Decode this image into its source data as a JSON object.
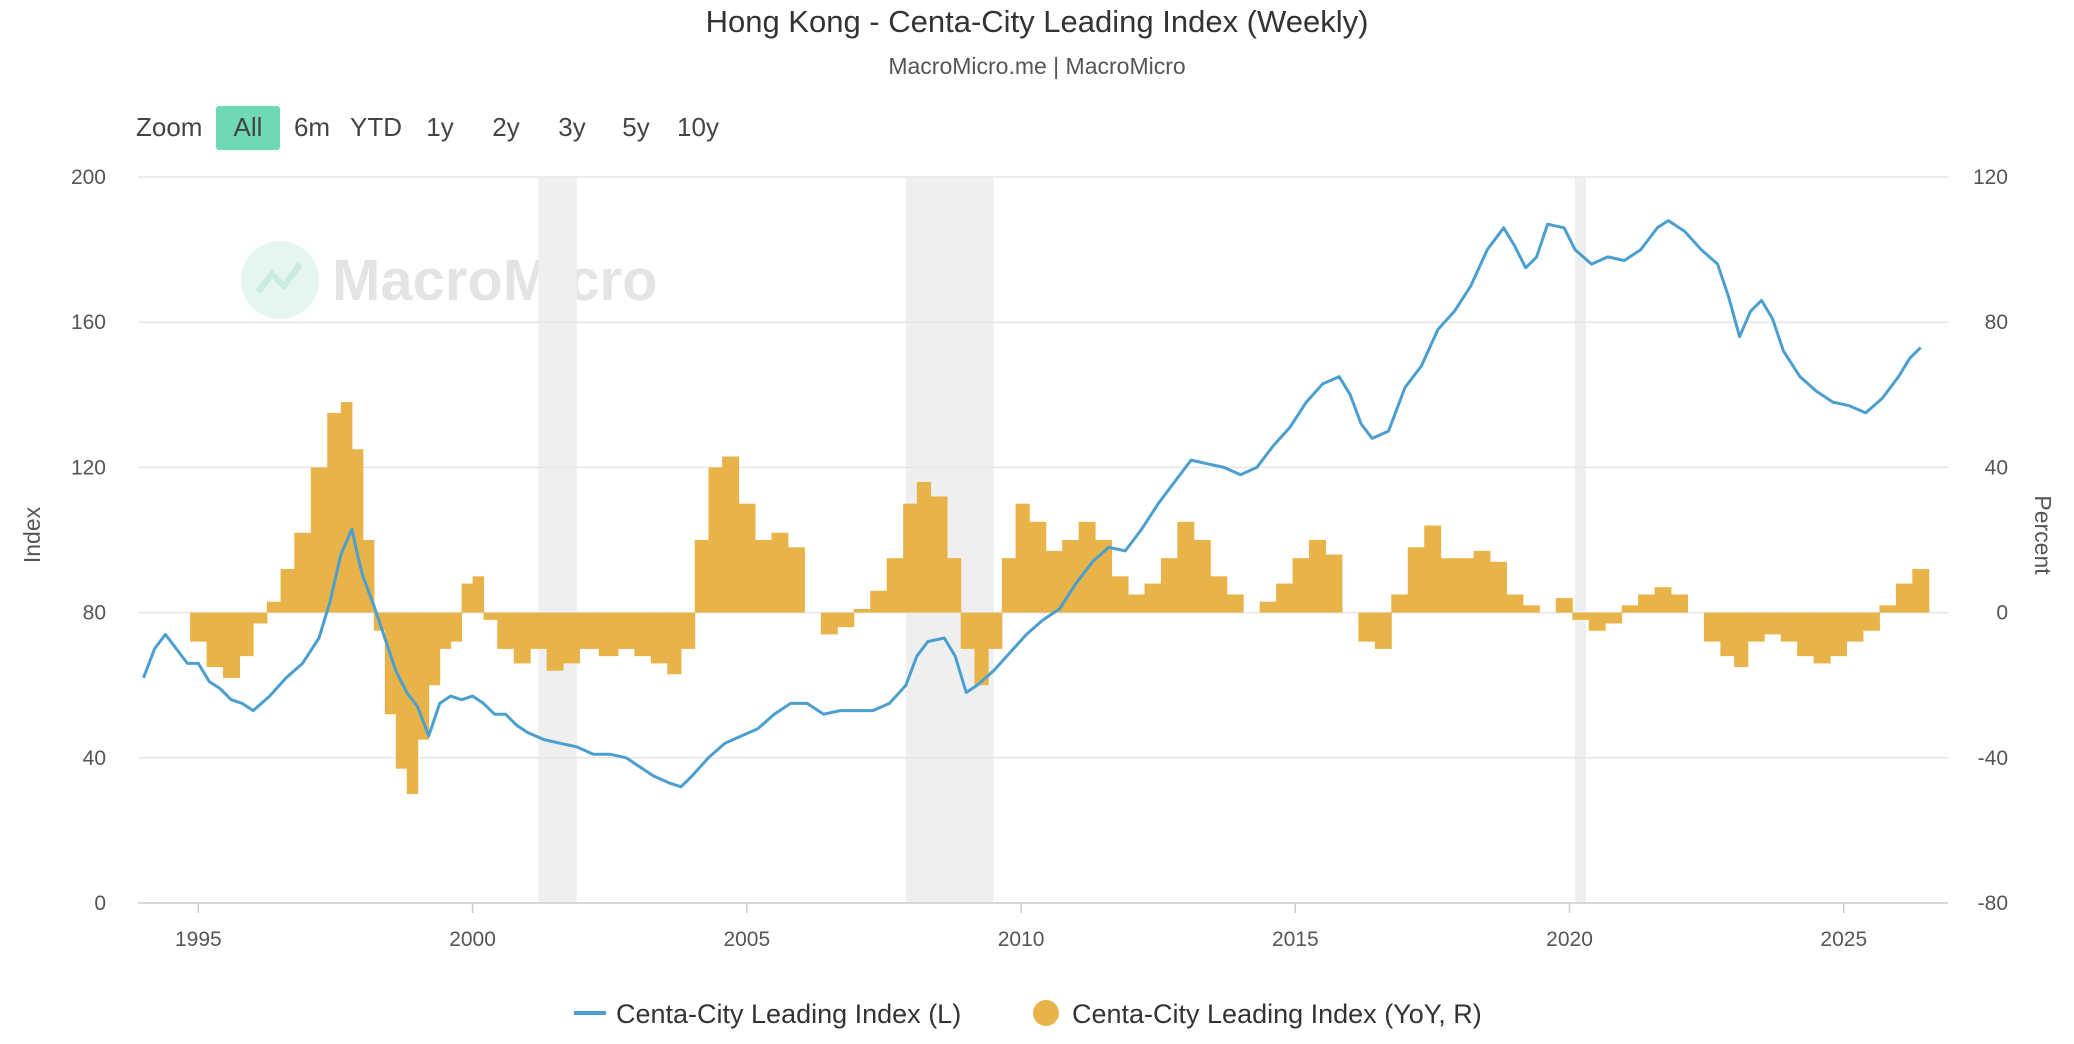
{
  "header": {
    "title": "Hong Kong - Centa-City Leading Index (Weekly)",
    "subtitle": "MacroMicro.me | MacroMicro"
  },
  "zoom": {
    "label": "Zoom",
    "options": [
      "All",
      "6m",
      "YTD",
      "1y",
      "2y",
      "3y",
      "5y",
      "10y"
    ],
    "selected": "All"
  },
  "watermark": "MacroMicro",
  "colors": {
    "index_line": "#4b9fd0",
    "yoy_bars": "#e8b44a",
    "recession_band": "#efefef",
    "grid": "#e6e6e6",
    "zoom_selected": "#6fd8b5"
  },
  "chart_data": {
    "type": "line",
    "title": "Hong Kong - Centa-City Leading Index (Weekly)",
    "subtitle": "MacroMicro.me | MacroMicro",
    "x_ticks": [
      "1995",
      "2000",
      "2005",
      "2010",
      "2015",
      "2020",
      "2025"
    ],
    "xlim": [
      1993.9,
      2026.9
    ],
    "left_axis": {
      "label": "Index",
      "ticks": [
        "0",
        "40",
        "80",
        "120",
        "160",
        "200"
      ],
      "ylim": [
        0,
        200
      ]
    },
    "right_axis": {
      "label": "Percent",
      "ticks": [
        "-80",
        "-40",
        "0",
        "40",
        "80",
        "120"
      ],
      "ylim": [
        -80,
        120
      ]
    },
    "grid": true,
    "legend_position": "bottom",
    "recession_bands": [
      [
        2001.2,
        2001.9
      ],
      [
        2007.9,
        2009.5
      ],
      [
        2020.1,
        2020.3
      ]
    ],
    "series": [
      {
        "name": "Centa-City Leading Index (L)",
        "type": "line",
        "axis": "left",
        "points": [
          [
            1994.0,
            62
          ],
          [
            1994.2,
            70
          ],
          [
            1994.4,
            74
          ],
          [
            1994.6,
            70
          ],
          [
            1994.8,
            66
          ],
          [
            1995.0,
            66
          ],
          [
            1995.2,
            61
          ],
          [
            1995.4,
            59
          ],
          [
            1995.6,
            56
          ],
          [
            1995.8,
            55
          ],
          [
            1996.0,
            53
          ],
          [
            1996.3,
            57
          ],
          [
            1996.6,
            62
          ],
          [
            1996.9,
            66
          ],
          [
            1997.2,
            73
          ],
          [
            1997.4,
            83
          ],
          [
            1997.6,
            96
          ],
          [
            1997.8,
            103
          ],
          [
            1997.9,
            96
          ],
          [
            1998.0,
            90
          ],
          [
            1998.2,
            82
          ],
          [
            1998.4,
            73
          ],
          [
            1998.6,
            64
          ],
          [
            1998.8,
            58
          ],
          [
            1999.0,
            54
          ],
          [
            1999.2,
            46
          ],
          [
            1999.4,
            55
          ],
          [
            1999.6,
            57
          ],
          [
            1999.8,
            56
          ],
          [
            2000.0,
            57
          ],
          [
            2000.2,
            55
          ],
          [
            2000.4,
            52
          ],
          [
            2000.6,
            52
          ],
          [
            2000.8,
            49
          ],
          [
            2001.0,
            47
          ],
          [
            2001.3,
            45
          ],
          [
            2001.6,
            44
          ],
          [
            2001.9,
            43
          ],
          [
            2002.2,
            41
          ],
          [
            2002.5,
            41
          ],
          [
            2002.8,
            40
          ],
          [
            2003.0,
            38
          ],
          [
            2003.3,
            35
          ],
          [
            2003.6,
            33
          ],
          [
            2003.8,
            32
          ],
          [
            2004.0,
            35
          ],
          [
            2004.3,
            40
          ],
          [
            2004.6,
            44
          ],
          [
            2004.9,
            46
          ],
          [
            2005.2,
            48
          ],
          [
            2005.5,
            52
          ],
          [
            2005.8,
            55
          ],
          [
            2006.1,
            55
          ],
          [
            2006.4,
            52
          ],
          [
            2006.7,
            53
          ],
          [
            2007.0,
            53
          ],
          [
            2007.3,
            53
          ],
          [
            2007.6,
            55
          ],
          [
            2007.9,
            60
          ],
          [
            2008.1,
            68
          ],
          [
            2008.3,
            72
          ],
          [
            2008.6,
            73
          ],
          [
            2008.8,
            68
          ],
          [
            2009.0,
            58
          ],
          [
            2009.2,
            60
          ],
          [
            2009.5,
            64
          ],
          [
            2009.8,
            69
          ],
          [
            2010.1,
            74
          ],
          [
            2010.4,
            78
          ],
          [
            2010.7,
            81
          ],
          [
            2011.0,
            88
          ],
          [
            2011.3,
            94
          ],
          [
            2011.6,
            98
          ],
          [
            2011.9,
            97
          ],
          [
            2012.2,
            103
          ],
          [
            2012.5,
            110
          ],
          [
            2012.8,
            116
          ],
          [
            2013.1,
            122
          ],
          [
            2013.4,
            121
          ],
          [
            2013.7,
            120
          ],
          [
            2014.0,
            118
          ],
          [
            2014.3,
            120
          ],
          [
            2014.6,
            126
          ],
          [
            2014.9,
            131
          ],
          [
            2015.2,
            138
          ],
          [
            2015.5,
            143
          ],
          [
            2015.8,
            145
          ],
          [
            2016.0,
            140
          ],
          [
            2016.2,
            132
          ],
          [
            2016.4,
            128
          ],
          [
            2016.7,
            130
          ],
          [
            2017.0,
            142
          ],
          [
            2017.3,
            148
          ],
          [
            2017.6,
            158
          ],
          [
            2017.9,
            163
          ],
          [
            2018.2,
            170
          ],
          [
            2018.5,
            180
          ],
          [
            2018.8,
            186
          ],
          [
            2019.0,
            181
          ],
          [
            2019.2,
            175
          ],
          [
            2019.4,
            178
          ],
          [
            2019.6,
            187
          ],
          [
            2019.9,
            186
          ],
          [
            2020.1,
            180
          ],
          [
            2020.4,
            176
          ],
          [
            2020.7,
            178
          ],
          [
            2021.0,
            177
          ],
          [
            2021.3,
            180
          ],
          [
            2021.6,
            186
          ],
          [
            2021.8,
            188
          ],
          [
            2022.1,
            185
          ],
          [
            2022.4,
            180
          ],
          [
            2022.7,
            176
          ],
          [
            2022.9,
            167
          ],
          [
            2023.1,
            156
          ],
          [
            2023.3,
            163
          ],
          [
            2023.5,
            166
          ],
          [
            2023.7,
            161
          ],
          [
            2023.9,
            152
          ],
          [
            2024.2,
            145
          ],
          [
            2024.5,
            141
          ],
          [
            2024.8,
            138
          ],
          [
            2025.1,
            137
          ],
          [
            2025.4,
            135
          ],
          [
            2025.7,
            139
          ],
          [
            2026.0,
            145
          ],
          [
            2026.2,
            150
          ],
          [
            2026.4,
            153
          ]
        ]
      },
      {
        "name": "Centa-City Leading Index (YoY, R)",
        "type": "bar",
        "axis": "right",
        "points": [
          [
            1995.0,
            -8
          ],
          [
            1995.3,
            -15
          ],
          [
            1995.6,
            -18
          ],
          [
            1995.9,
            -12
          ],
          [
            1996.1,
            -3
          ],
          [
            1996.4,
            3
          ],
          [
            1996.6,
            12
          ],
          [
            1996.9,
            22
          ],
          [
            1997.2,
            40
          ],
          [
            1997.5,
            55
          ],
          [
            1997.7,
            58
          ],
          [
            1997.9,
            45
          ],
          [
            1998.1,
            20
          ],
          [
            1998.3,
            -5
          ],
          [
            1998.5,
            -28
          ],
          [
            1998.7,
            -43
          ],
          [
            1998.9,
            -50
          ],
          [
            1999.1,
            -35
          ],
          [
            1999.3,
            -20
          ],
          [
            1999.5,
            -10
          ],
          [
            1999.7,
            -8
          ],
          [
            1999.9,
            8
          ],
          [
            2000.1,
            10
          ],
          [
            2000.3,
            -2
          ],
          [
            2000.6,
            -10
          ],
          [
            2000.9,
            -14
          ],
          [
            2001.2,
            -10
          ],
          [
            2001.5,
            -16
          ],
          [
            2001.8,
            -14
          ],
          [
            2002.1,
            -10
          ],
          [
            2002.5,
            -12
          ],
          [
            2002.8,
            -10
          ],
          [
            2003.1,
            -12
          ],
          [
            2003.4,
            -14
          ],
          [
            2003.7,
            -17
          ],
          [
            2003.9,
            -10
          ],
          [
            2004.2,
            20
          ],
          [
            2004.4,
            40
          ],
          [
            2004.7,
            43
          ],
          [
            2005.0,
            30
          ],
          [
            2005.3,
            20
          ],
          [
            2005.6,
            22
          ],
          [
            2005.9,
            18
          ],
          [
            2006.2,
            0
          ],
          [
            2006.5,
            -6
          ],
          [
            2006.8,
            -4
          ],
          [
            2007.1,
            1
          ],
          [
            2007.4,
            6
          ],
          [
            2007.7,
            15
          ],
          [
            2008.0,
            30
          ],
          [
            2008.2,
            36
          ],
          [
            2008.5,
            32
          ],
          [
            2008.8,
            15
          ],
          [
            2009.0,
            -10
          ],
          [
            2009.3,
            -20
          ],
          [
            2009.5,
            -10
          ],
          [
            2009.8,
            15
          ],
          [
            2010.0,
            30
          ],
          [
            2010.3,
            25
          ],
          [
            2010.6,
            17
          ],
          [
            2010.9,
            20
          ],
          [
            2011.2,
            25
          ],
          [
            2011.5,
            20
          ],
          [
            2011.8,
            10
          ],
          [
            2012.1,
            5
          ],
          [
            2012.4,
            8
          ],
          [
            2012.7,
            15
          ],
          [
            2013.0,
            25
          ],
          [
            2013.3,
            20
          ],
          [
            2013.6,
            10
          ],
          [
            2013.9,
            5
          ],
          [
            2014.2,
            0
          ],
          [
            2014.5,
            3
          ],
          [
            2014.8,
            8
          ],
          [
            2015.1,
            15
          ],
          [
            2015.4,
            20
          ],
          [
            2015.7,
            16
          ],
          [
            2016.0,
            0
          ],
          [
            2016.3,
            -8
          ],
          [
            2016.6,
            -10
          ],
          [
            2016.9,
            5
          ],
          [
            2017.2,
            18
          ],
          [
            2017.5,
            24
          ],
          [
            2017.8,
            15
          ],
          [
            2018.1,
            15
          ],
          [
            2018.4,
            17
          ],
          [
            2018.7,
            14
          ],
          [
            2019.0,
            5
          ],
          [
            2019.3,
            2
          ],
          [
            2019.6,
            0
          ],
          [
            2019.9,
            4
          ],
          [
            2020.2,
            -2
          ],
          [
            2020.5,
            -5
          ],
          [
            2020.8,
            -3
          ],
          [
            2021.1,
            2
          ],
          [
            2021.4,
            5
          ],
          [
            2021.7,
            7
          ],
          [
            2022.0,
            5
          ],
          [
            2022.3,
            0
          ],
          [
            2022.6,
            -8
          ],
          [
            2022.9,
            -12
          ],
          [
            2023.1,
            -15
          ],
          [
            2023.4,
            -8
          ],
          [
            2023.7,
            -6
          ],
          [
            2024.0,
            -8
          ],
          [
            2024.3,
            -12
          ],
          [
            2024.6,
            -14
          ],
          [
            2024.9,
            -12
          ],
          [
            2025.2,
            -8
          ],
          [
            2025.5,
            -5
          ],
          [
            2025.8,
            2
          ],
          [
            2026.1,
            8
          ],
          [
            2026.4,
            12
          ]
        ]
      }
    ]
  }
}
